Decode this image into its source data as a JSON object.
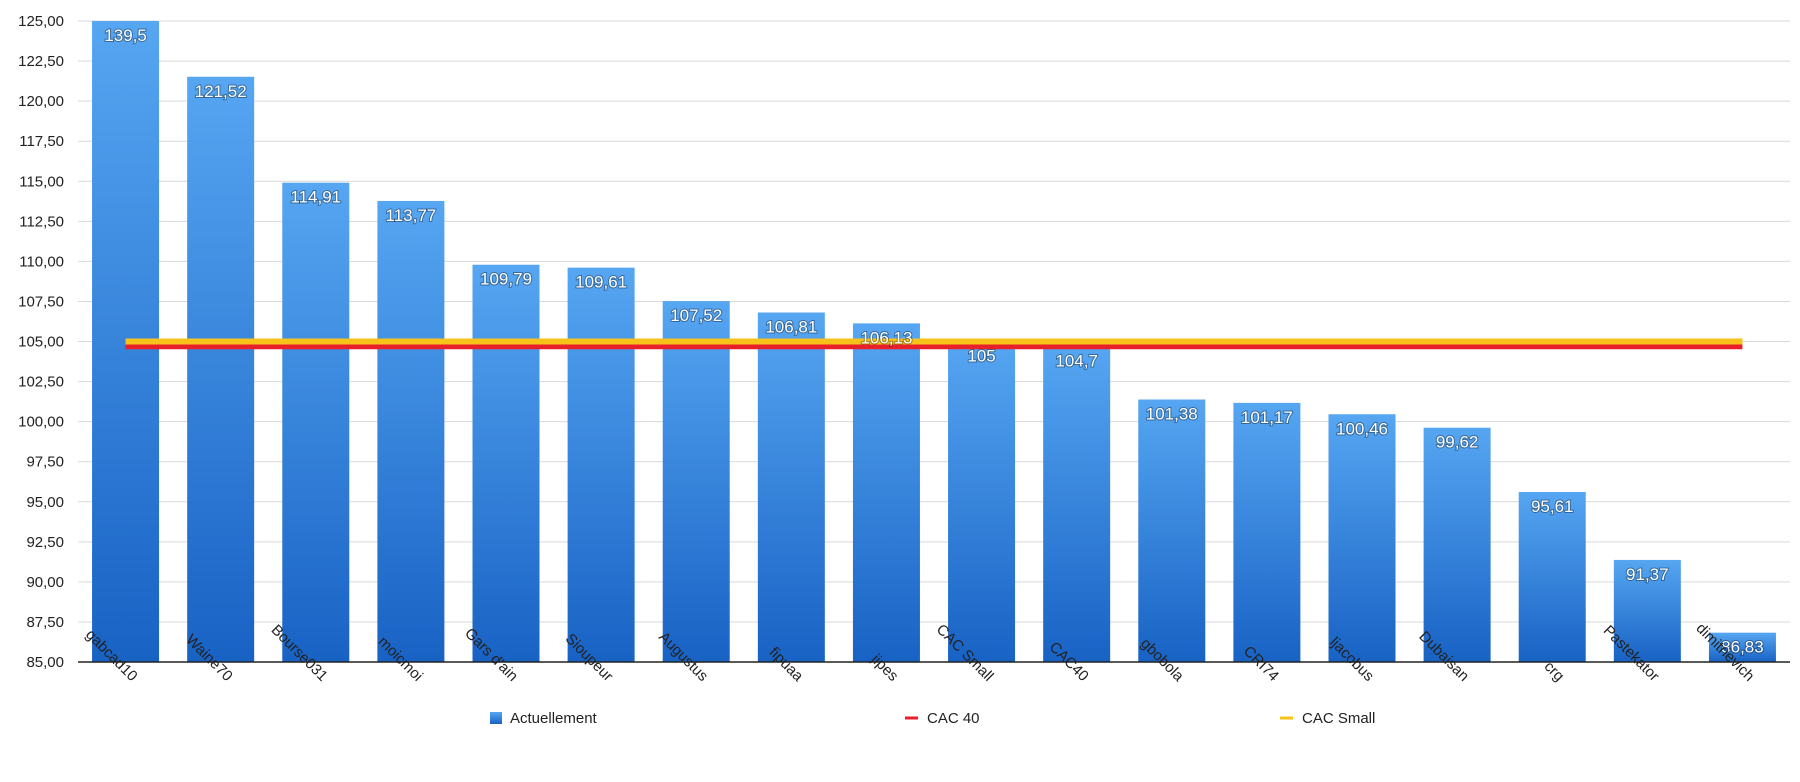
{
  "chart_data": {
    "type": "bar",
    "title": "",
    "xlabel": "",
    "ylabel": "",
    "ylim": [
      85,
      125
    ],
    "ytick_step": 2.5,
    "grid": true,
    "legend_placement": "bottom",
    "categories": [
      "gabcad10",
      "Waine70",
      "Bourse031",
      "moicmoi",
      "Gars d'ain",
      "Sioupeur",
      "Augustus",
      "fipuaa",
      "jipes",
      "CAC Small",
      "CAC40",
      "gbobola",
      "CRI74",
      "ljacobus",
      "Dubaisan",
      "crg",
      "Pastekator",
      "dimitrievich"
    ],
    "series": [
      {
        "name": "Actuellement",
        "color": "#2f86df",
        "values": [
          139.5,
          121.52,
          114.91,
          113.77,
          109.79,
          109.61,
          107.52,
          106.81,
          106.13,
          105,
          104.7,
          101.38,
          101.17,
          100.46,
          99.62,
          95.61,
          91.37,
          86.83
        ],
        "data_labels": [
          "139,5",
          "121,52",
          "114,91",
          "113,77",
          "109,79",
          "109,61",
          "107,52",
          "106,81",
          "106,13",
          "105",
          "104,7",
          "101,38",
          "101,17",
          "100,46",
          "99,62",
          "95,61",
          "91,37",
          "86,83"
        ]
      }
    ],
    "reference_lines": [
      {
        "name": "CAC 40",
        "value": 104.7,
        "color": "#e8202a"
      },
      {
        "name": "CAC Small",
        "value": 105.0,
        "color": "#f7c21a"
      }
    ],
    "ytick_labels": [
      "85,00",
      "87,50",
      "90,00",
      "92,50",
      "95,00",
      "97,50",
      "100,00",
      "102,50",
      "105,00",
      "107,50",
      "110,00",
      "112,50",
      "115,00",
      "117,50",
      "120,00",
      "122,50",
      "125,00"
    ]
  }
}
